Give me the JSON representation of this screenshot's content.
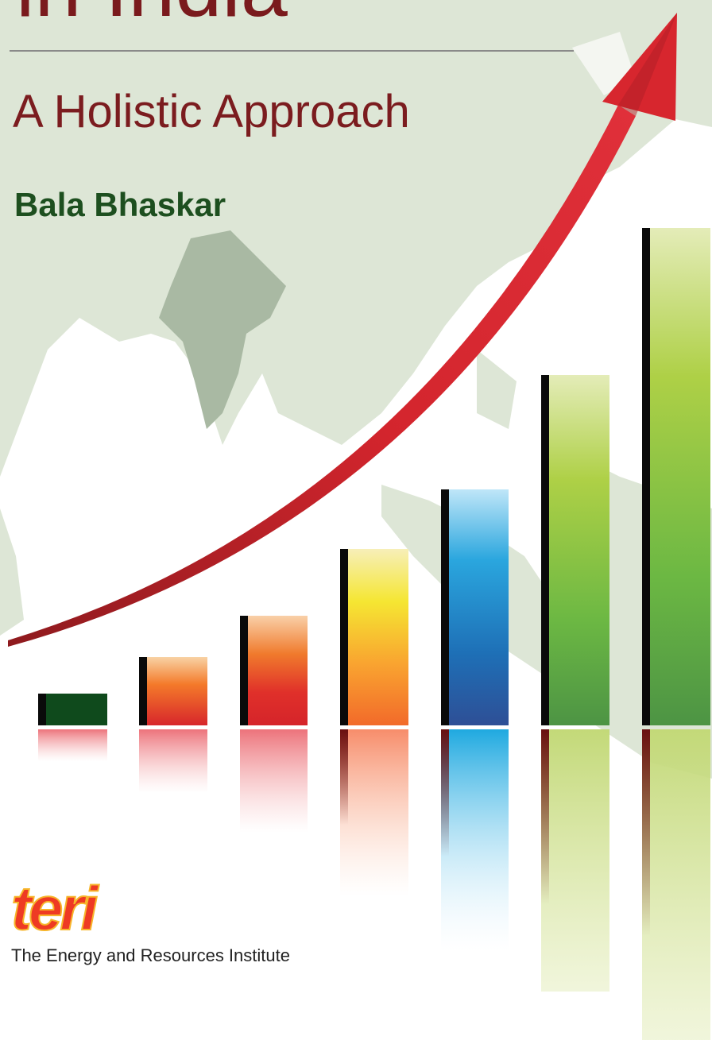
{
  "cover": {
    "title_fragment": "in India",
    "subtitle": "A Holistic Approach",
    "author": "Bala Bhaskar",
    "publisher_logo": "teri",
    "publisher": "The Energy and Resources Institute"
  }
}
